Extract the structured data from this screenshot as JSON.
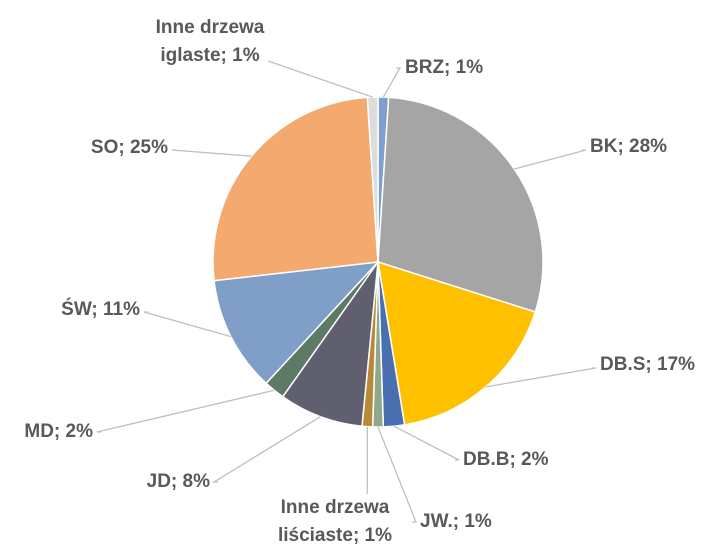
{
  "chart_data": {
    "type": "pie",
    "labels": [
      [
        "BRZ; 1%"
      ],
      [
        "BK; 28%"
      ],
      [
        "DB.S; 17%"
      ],
      [
        "DB.B; 2%"
      ],
      [
        "JW.; 1%"
      ],
      [
        "Inne drzewa",
        "liściaste; 1%"
      ],
      [
        "JD; 8%"
      ],
      [
        "MD; 2%"
      ],
      [
        "ŚW; 11%"
      ],
      [
        "SO; 25%"
      ],
      [
        "Inne drzewa",
        "iglaste; 1%"
      ]
    ],
    "values": [
      1,
      28,
      17,
      2,
      1,
      1,
      8,
      2,
      11,
      25,
      1
    ],
    "colors": [
      "#7f9fcf",
      "#a5a5a5",
      "#ffc000",
      "#4a6fb0",
      "#8fa88a",
      "#b8893a",
      "#5f5f70",
      "#5d7a66",
      "#7f9fc8",
      "#f4a96f",
      "#dcdcdc"
    ]
  }
}
